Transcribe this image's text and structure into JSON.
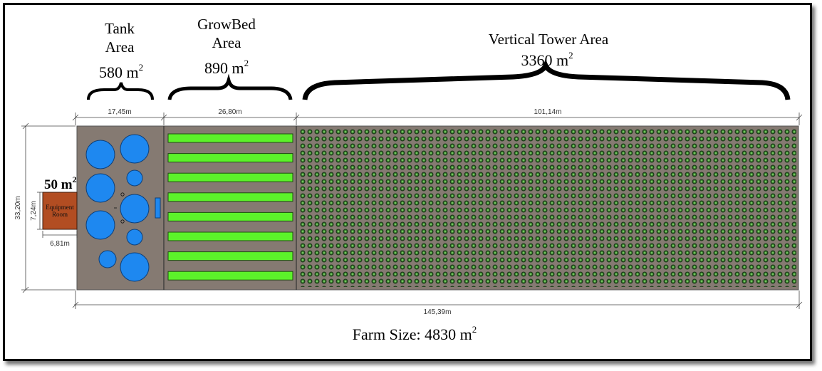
{
  "areas": {
    "tank": {
      "line1": "Tank",
      "line2": "Area",
      "area_value": "580 m",
      "area_sup": "2"
    },
    "growbed": {
      "line1": "GrowBed",
      "line2": "Area",
      "area_value": "890 m",
      "area_sup": "2"
    },
    "tower": {
      "line1": "Vertical Tower Area",
      "area_value": "3360 m",
      "area_sup": "2"
    }
  },
  "dimensions": {
    "tank_width": "17,45m",
    "growbed_width": "26,80m",
    "tower_width": "101,14m",
    "total_width": "145,39m",
    "total_height": "33,20m",
    "equipment_height": "7,24m",
    "equipment_width": "6,81m"
  },
  "equipment_room": {
    "area_value": "50 m",
    "area_sup": "2",
    "label_line1": "Equipment",
    "label_line2": "Room"
  },
  "farm_size": {
    "label": "Farm Size: 4830 m",
    "sup": "2"
  },
  "colors": {
    "floor": "#857a72",
    "tank": "#1e88f0",
    "bed": "#5cf22a",
    "equipment": "#b24d22",
    "tower": "#3f8f31"
  },
  "growbed_count": 8
}
